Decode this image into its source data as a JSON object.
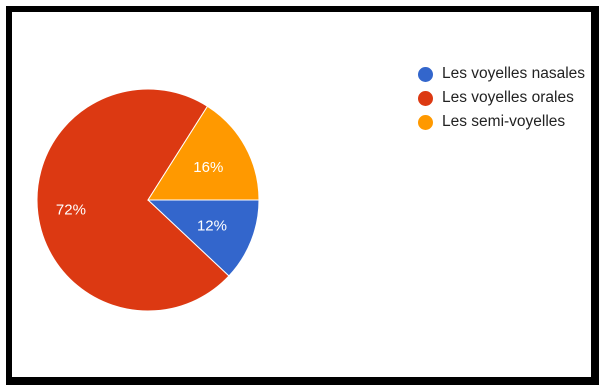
{
  "chart_data": {
    "type": "pie",
    "slices": [
      {
        "label": "Les voyelles nasales",
        "value": 12,
        "display": "12%",
        "color": "#3366cc"
      },
      {
        "label": "Les voyelles orales",
        "value": 72,
        "display": "72%",
        "color": "#dc3912"
      },
      {
        "label": "Les semi-voyelles",
        "value": 16,
        "display": "16%",
        "color": "#ff9900"
      }
    ],
    "legend_position": "right",
    "start_angle_deg": 0,
    "direction": "clockwise"
  }
}
